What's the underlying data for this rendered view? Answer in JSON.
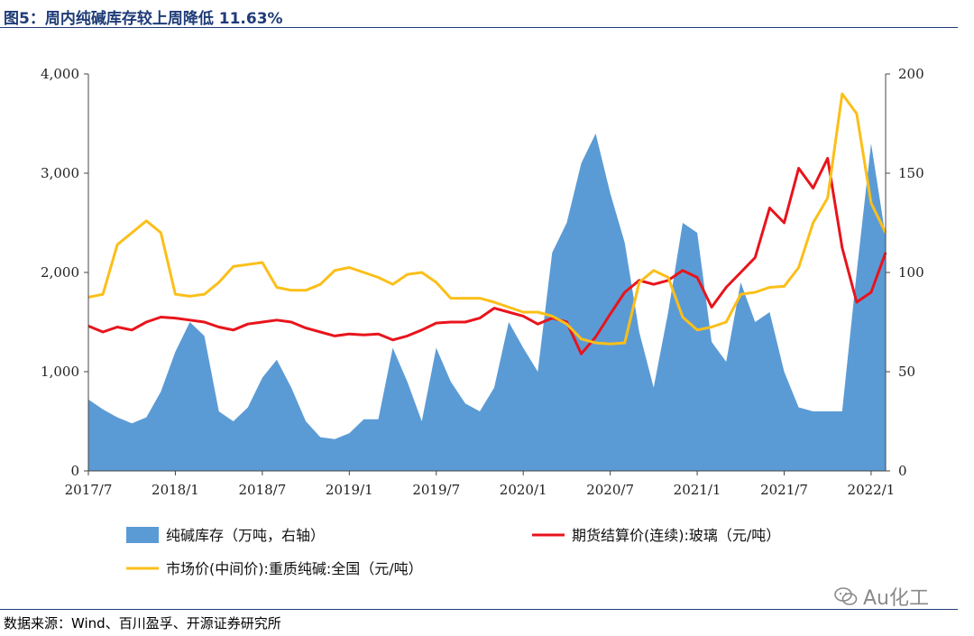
{
  "figure": {
    "title": "图5：周内纯碱库存较上周降低 11.63%",
    "source": "数据来源：Wind、百川盈孚、开源证券研究所",
    "watermark": "Au化工"
  },
  "colors": {
    "inventory": "#5b9bd5",
    "glass_futures": "#e8141c",
    "soda_market": "#fbbf19",
    "title": "#1f3c78"
  },
  "chart_data": {
    "type": "area",
    "x_ticks": [
      "2017/7",
      "2018/1",
      "2018/7",
      "2019/1",
      "2019/7",
      "2020/1",
      "2020/7",
      "2021/1",
      "2021/7",
      "2022/1"
    ],
    "x_range": [
      "2017/7",
      "2022/2"
    ],
    "left_axis": {
      "ticks": [
        "0",
        "1,000",
        "2,000",
        "3,000",
        "4,000"
      ],
      "range": [
        0,
        4000
      ]
    },
    "right_axis": {
      "ticks": [
        "0",
        "50",
        "100",
        "150",
        "200"
      ],
      "range": [
        0,
        200
      ]
    },
    "series": [
      {
        "name": "纯碱库存（万吨，右轴）",
        "type": "area",
        "axis": "right",
        "color": "#5b9bd5",
        "points": [
          [
            "2017/7",
            36
          ],
          [
            "2017/8",
            31
          ],
          [
            "2017/9",
            27
          ],
          [
            "2017/10",
            24
          ],
          [
            "2017/11",
            27
          ],
          [
            "2017/12",
            40
          ],
          [
            "2018/1",
            60
          ],
          [
            "2018/2",
            75
          ],
          [
            "2018/3",
            68
          ],
          [
            "2018/4",
            30
          ],
          [
            "2018/5",
            25
          ],
          [
            "2018/6",
            32
          ],
          [
            "2018/7",
            47
          ],
          [
            "2018/8",
            56
          ],
          [
            "2018/9",
            42
          ],
          [
            "2018/10",
            25
          ],
          [
            "2018/11",
            17
          ],
          [
            "2018/12",
            16
          ],
          [
            "2019/1",
            19
          ],
          [
            "2019/2",
            26
          ],
          [
            "2019/3",
            26
          ],
          [
            "2019/4",
            62
          ],
          [
            "2019/5",
            45
          ],
          [
            "2019/6",
            25
          ],
          [
            "2019/7",
            62
          ],
          [
            "2019/8",
            45
          ],
          [
            "2019/9",
            34
          ],
          [
            "2019/10",
            30
          ],
          [
            "2019/11",
            42
          ],
          [
            "2019/12",
            75
          ],
          [
            "2020/1",
            62
          ],
          [
            "2020/2",
            50
          ],
          [
            "2020/3",
            110
          ],
          [
            "2020/4",
            125
          ],
          [
            "2020/5",
            155
          ],
          [
            "2020/6",
            170
          ],
          [
            "2020/7",
            140
          ],
          [
            "2020/8",
            115
          ],
          [
            "2020/9",
            70
          ],
          [
            "2020/10",
            42
          ],
          [
            "2020/11",
            80
          ],
          [
            "2020/12",
            125
          ],
          [
            "2021/1",
            120
          ],
          [
            "2021/2",
            65
          ],
          [
            "2021/3",
            55
          ],
          [
            "2021/4",
            95
          ],
          [
            "2021/5",
            75
          ],
          [
            "2021/6",
            80
          ],
          [
            "2021/7",
            50
          ],
          [
            "2021/8",
            32
          ],
          [
            "2021/9",
            30
          ],
          [
            "2021/10",
            30
          ],
          [
            "2021/11",
            30
          ],
          [
            "2021/12",
            100
          ],
          [
            "2022/1",
            165
          ],
          [
            "2022/2",
            118
          ]
        ]
      },
      {
        "name": "期货结算价(连续):玻璃（元/吨）",
        "type": "line",
        "axis": "left",
        "color": "#e8141c",
        "points": [
          [
            "2017/7",
            1460
          ],
          [
            "2017/8",
            1400
          ],
          [
            "2017/9",
            1450
          ],
          [
            "2017/10",
            1420
          ],
          [
            "2017/11",
            1500
          ],
          [
            "2017/12",
            1550
          ],
          [
            "2018/1",
            1540
          ],
          [
            "2018/2",
            1520
          ],
          [
            "2018/3",
            1500
          ],
          [
            "2018/4",
            1450
          ],
          [
            "2018/5",
            1420
          ],
          [
            "2018/6",
            1480
          ],
          [
            "2018/7",
            1500
          ],
          [
            "2018/8",
            1520
          ],
          [
            "2018/9",
            1500
          ],
          [
            "2018/10",
            1440
          ],
          [
            "2018/11",
            1400
          ],
          [
            "2018/12",
            1360
          ],
          [
            "2019/1",
            1380
          ],
          [
            "2019/2",
            1370
          ],
          [
            "2019/3",
            1380
          ],
          [
            "2019/4",
            1320
          ],
          [
            "2019/5",
            1360
          ],
          [
            "2019/6",
            1420
          ],
          [
            "2019/7",
            1490
          ],
          [
            "2019/8",
            1500
          ],
          [
            "2019/9",
            1500
          ],
          [
            "2019/10",
            1540
          ],
          [
            "2019/11",
            1640
          ],
          [
            "2019/12",
            1600
          ],
          [
            "2020/1",
            1560
          ],
          [
            "2020/2",
            1480
          ],
          [
            "2020/3",
            1540
          ],
          [
            "2020/4",
            1500
          ],
          [
            "2020/5",
            1180
          ],
          [
            "2020/6",
            1350
          ],
          [
            "2020/7",
            1580
          ],
          [
            "2020/8",
            1800
          ],
          [
            "2020/9",
            1920
          ],
          [
            "2020/10",
            1880
          ],
          [
            "2020/11",
            1920
          ],
          [
            "2020/12",
            2020
          ],
          [
            "2021/1",
            1950
          ],
          [
            "2021/2",
            1650
          ],
          [
            "2021/3",
            1850
          ],
          [
            "2021/4",
            2000
          ],
          [
            "2021/5",
            2150
          ],
          [
            "2021/6",
            2650
          ],
          [
            "2021/7",
            2500
          ],
          [
            "2021/8",
            3050
          ],
          [
            "2021/9",
            2850
          ],
          [
            "2021/10",
            3150
          ],
          [
            "2021/11",
            2250
          ],
          [
            "2021/12",
            1700
          ],
          [
            "2022/1",
            1800
          ],
          [
            "2022/2",
            2200
          ]
        ]
      },
      {
        "name": "市场价(中间价):重质纯碱:全国（元/吨）",
        "type": "line",
        "axis": "left",
        "color": "#fbbf19",
        "points": [
          [
            "2017/7",
            1750
          ],
          [
            "2017/8",
            1780
          ],
          [
            "2017/9",
            2280
          ],
          [
            "2017/10",
            2400
          ],
          [
            "2017/11",
            2520
          ],
          [
            "2017/12",
            2400
          ],
          [
            "2018/1",
            1780
          ],
          [
            "2018/2",
            1760
          ],
          [
            "2018/3",
            1780
          ],
          [
            "2018/4",
            1900
          ],
          [
            "2018/5",
            2060
          ],
          [
            "2018/6",
            2080
          ],
          [
            "2018/7",
            2100
          ],
          [
            "2018/8",
            1850
          ],
          [
            "2018/9",
            1820
          ],
          [
            "2018/10",
            1820
          ],
          [
            "2018/11",
            1880
          ],
          [
            "2018/12",
            2020
          ],
          [
            "2019/1",
            2050
          ],
          [
            "2019/2",
            2000
          ],
          [
            "2019/3",
            1950
          ],
          [
            "2019/4",
            1880
          ],
          [
            "2019/5",
            1980
          ],
          [
            "2019/6",
            2000
          ],
          [
            "2019/7",
            1900
          ],
          [
            "2019/8",
            1740
          ],
          [
            "2019/9",
            1740
          ],
          [
            "2019/10",
            1740
          ],
          [
            "2019/11",
            1700
          ],
          [
            "2019/12",
            1650
          ],
          [
            "2020/1",
            1600
          ],
          [
            "2020/2",
            1600
          ],
          [
            "2020/3",
            1560
          ],
          [
            "2020/4",
            1480
          ],
          [
            "2020/5",
            1330
          ],
          [
            "2020/6",
            1290
          ],
          [
            "2020/7",
            1280
          ],
          [
            "2020/8",
            1290
          ],
          [
            "2020/9",
            1900
          ],
          [
            "2020/10",
            2020
          ],
          [
            "2020/11",
            1950
          ],
          [
            "2020/12",
            1550
          ],
          [
            "2021/1",
            1420
          ],
          [
            "2021/2",
            1450
          ],
          [
            "2021/3",
            1500
          ],
          [
            "2021/4",
            1780
          ],
          [
            "2021/5",
            1800
          ],
          [
            "2021/6",
            1850
          ],
          [
            "2021/7",
            1860
          ],
          [
            "2021/8",
            2050
          ],
          [
            "2021/9",
            2500
          ],
          [
            "2021/10",
            2750
          ],
          [
            "2021/11",
            3800
          ],
          [
            "2021/12",
            3600
          ],
          [
            "2022/1",
            2700
          ],
          [
            "2022/2",
            2400
          ]
        ]
      }
    ],
    "legend_position": "bottom",
    "grid": false
  }
}
